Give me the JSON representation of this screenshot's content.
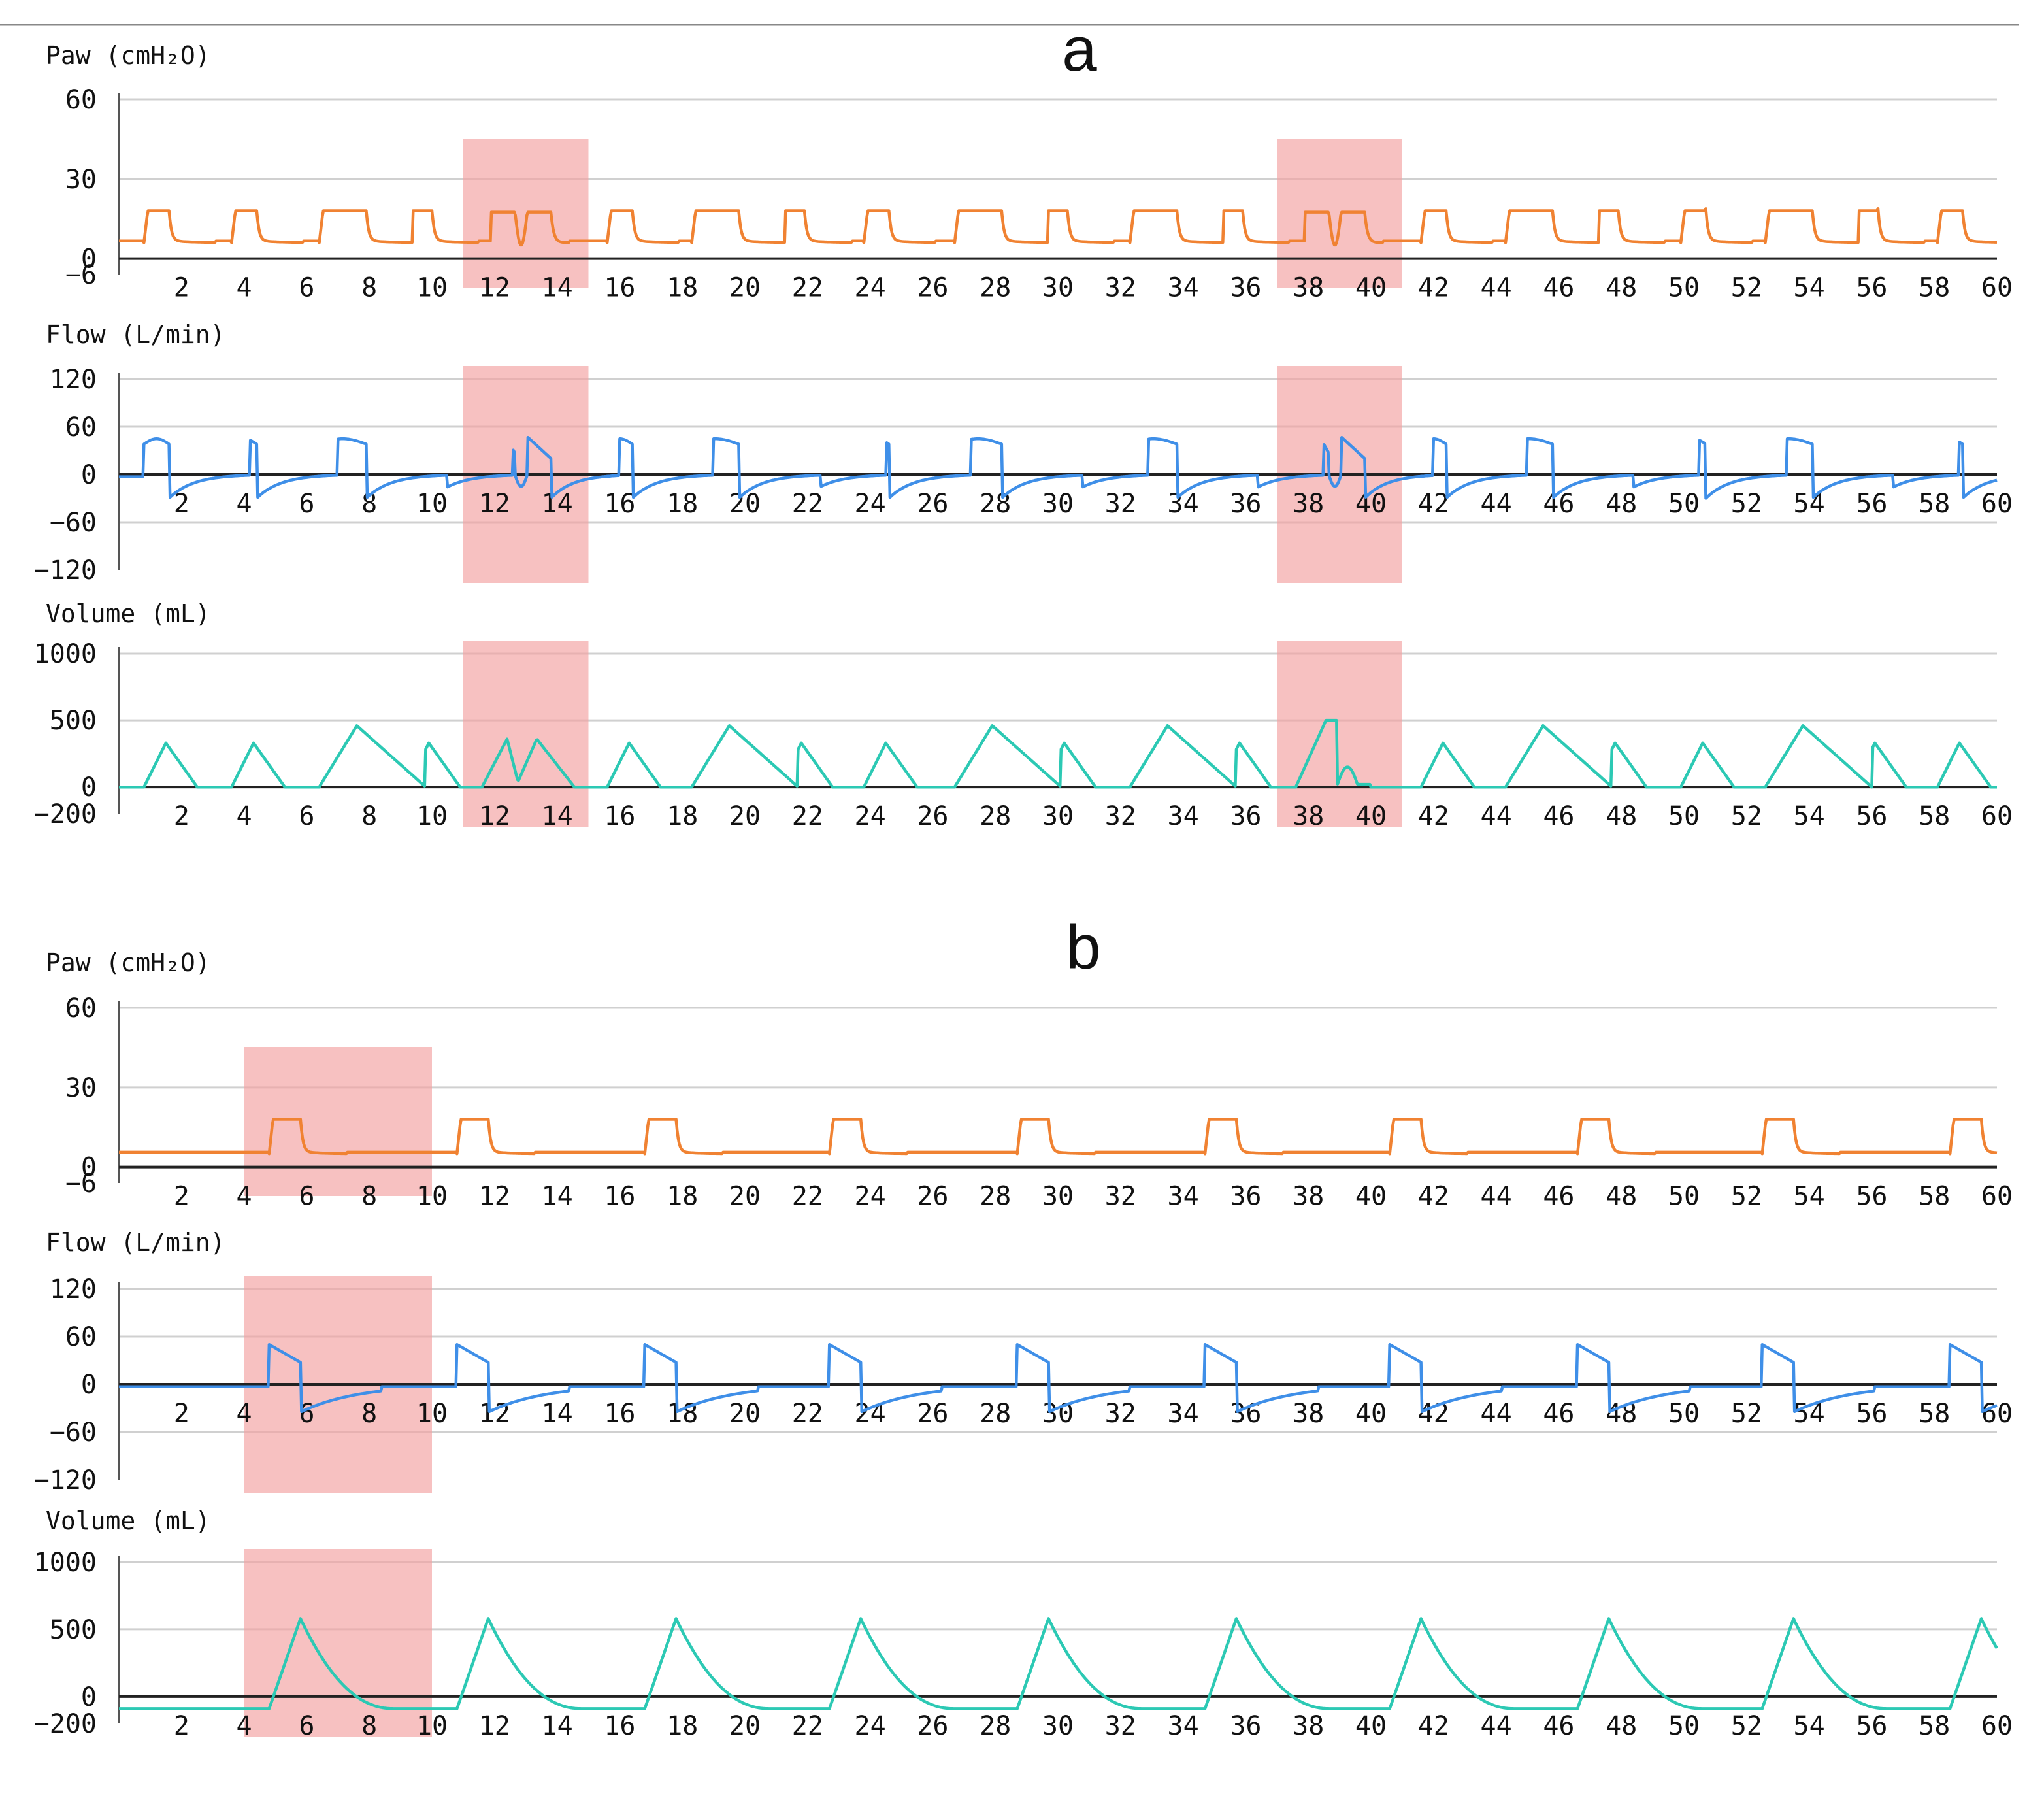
{
  "figure": {
    "top_rule": true,
    "panels": [
      {
        "letter": "a",
        "highlight_windows": [
          [
            11,
            15
          ],
          [
            37,
            41
          ]
        ],
        "breaths": [
          {
            "start": 0.8,
            "type": "normal"
          },
          {
            "start": 3.6,
            "type": "normal"
          },
          {
            "start": 6.4,
            "type": "long"
          },
          {
            "start": 9.2,
            "type": "normal"
          },
          {
            "start": 11.9,
            "type": "double"
          },
          {
            "start": 15.6,
            "type": "normal"
          },
          {
            "start": 18.3,
            "type": "long"
          },
          {
            "start": 21.1,
            "type": "normal"
          },
          {
            "start": 23.8,
            "type": "normal"
          },
          {
            "start": 26.7,
            "type": "long"
          },
          {
            "start": 29.5,
            "type": "normal"
          },
          {
            "start": 32.3,
            "type": "long"
          },
          {
            "start": 35.1,
            "type": "normal"
          },
          {
            "start": 37.9,
            "type": "double_stack"
          },
          {
            "start": 41.6,
            "type": "normal"
          },
          {
            "start": 44.3,
            "type": "long"
          },
          {
            "start": 47.1,
            "type": "normal"
          },
          {
            "start": 49.9,
            "type": "normal"
          },
          {
            "start": 52.6,
            "type": "long"
          },
          {
            "start": 55.4,
            "type": "normal"
          },
          {
            "start": 58.1,
            "type": "normal"
          }
        ]
      },
      {
        "letter": "b",
        "highlight_windows": [
          [
            4,
            10
          ]
        ],
        "breaths": [
          {
            "start": 4.8,
            "type": "slow"
          },
          {
            "start": 10.8,
            "type": "slow"
          },
          {
            "start": 16.8,
            "type": "slow"
          },
          {
            "start": 22.7,
            "type": "slow"
          },
          {
            "start": 28.7,
            "type": "slow"
          },
          {
            "start": 34.7,
            "type": "slow"
          },
          {
            "start": 40.6,
            "type": "slow"
          },
          {
            "start": 46.6,
            "type": "slow"
          },
          {
            "start": 52.5,
            "type": "slow"
          },
          {
            "start": 58.5,
            "type": "slow"
          }
        ]
      }
    ]
  },
  "chart_data": [
    {
      "type": "line",
      "panel": "a",
      "title": "Paw (cmH₂O)",
      "ylabel": "Paw (cmH₂O)",
      "xlabel": "",
      "xlim": [
        0,
        60
      ],
      "ylim": [
        -6,
        60
      ],
      "y_ticks": [
        60,
        30,
        0,
        -6
      ],
      "x_ticks": [
        2,
        4,
        6,
        8,
        10,
        12,
        14,
        16,
        18,
        20,
        22,
        24,
        26,
        28,
        30,
        32,
        34,
        36,
        38,
        40,
        42,
        44,
        46,
        48,
        50,
        52,
        54,
        56,
        58,
        60
      ],
      "grid": true,
      "baseline": 0,
      "color": "#F08232",
      "series": [
        {
          "name": "Paw",
          "peak": 18,
          "peep": 6
        }
      ]
    },
    {
      "type": "line",
      "panel": "a",
      "title": "Flow (L/min)",
      "ylabel": "Flow (L/min)",
      "xlabel": "",
      "xlim": [
        0,
        60
      ],
      "ylim": [
        -120,
        120
      ],
      "y_ticks": [
        120,
        60,
        0,
        -60,
        -120
      ],
      "x_ticks": [
        2,
        4,
        6,
        8,
        10,
        12,
        14,
        16,
        18,
        20,
        22,
        24,
        26,
        28,
        30,
        32,
        34,
        36,
        38,
        40,
        42,
        44,
        46,
        48,
        50,
        52,
        54,
        56,
        58,
        60
      ],
      "grid": true,
      "baseline": 0,
      "color": "#3F8FE8",
      "series": [
        {
          "name": "Flow",
          "insp_peak": 45,
          "exp_peak": -30
        }
      ]
    },
    {
      "type": "line",
      "panel": "a",
      "title": "Volume (mL)",
      "ylabel": "Volume (mL)",
      "xlabel": "",
      "xlim": [
        0,
        60
      ],
      "ylim": [
        -200,
        1000
      ],
      "y_ticks": [
        1000,
        500,
        0,
        -200
      ],
      "x_ticks": [
        2,
        4,
        6,
        8,
        10,
        12,
        14,
        16,
        18,
        20,
        22,
        24,
        26,
        28,
        30,
        32,
        34,
        36,
        38,
        40,
        42,
        44,
        46,
        48,
        50,
        52,
        54,
        56,
        58,
        60
      ],
      "grid": true,
      "baseline": 0,
      "color": "#2CC9B4",
      "series": [
        {
          "name": "Volume",
          "tidal_normal": 330,
          "tidal_long": 460
        }
      ]
    },
    {
      "type": "line",
      "panel": "b",
      "title": "Paw (cmH₂O)",
      "ylabel": "Paw (cmH₂O)",
      "xlabel": "",
      "xlim": [
        0,
        60
      ],
      "ylim": [
        -6,
        60
      ],
      "y_ticks": [
        60,
        30,
        0,
        -6
      ],
      "x_ticks": [
        2,
        4,
        6,
        8,
        10,
        12,
        14,
        16,
        18,
        20,
        22,
        24,
        26,
        28,
        30,
        32,
        34,
        36,
        38,
        40,
        42,
        44,
        46,
        48,
        50,
        52,
        54,
        56,
        58,
        60
      ],
      "grid": true,
      "baseline": 0,
      "color": "#F08232",
      "series": [
        {
          "name": "Paw",
          "peak": 18,
          "peep": 5
        }
      ]
    },
    {
      "type": "line",
      "panel": "b",
      "title": "Flow (L/min)",
      "ylabel": "Flow (L/min)",
      "xlabel": "",
      "xlim": [
        0,
        60
      ],
      "ylim": [
        -120,
        120
      ],
      "y_ticks": [
        120,
        60,
        0,
        -60,
        -120
      ],
      "x_ticks": [
        2,
        4,
        6,
        8,
        10,
        12,
        14,
        16,
        18,
        20,
        22,
        24,
        26,
        28,
        30,
        32,
        34,
        36,
        38,
        40,
        42,
        44,
        46,
        48,
        50,
        52,
        54,
        56,
        58,
        60
      ],
      "grid": true,
      "baseline": 0,
      "color": "#3F8FE8",
      "series": [
        {
          "name": "Flow",
          "insp_peak": 50,
          "exp_peak": -35
        }
      ]
    },
    {
      "type": "line",
      "panel": "b",
      "title": "Volume (mL)",
      "ylabel": "Volume (mL)",
      "xlabel": "",
      "xlim": [
        0,
        60
      ],
      "ylim": [
        -200,
        1000
      ],
      "y_ticks": [
        1000,
        500,
        0,
        -200
      ],
      "x_ticks": [
        2,
        4,
        6,
        8,
        10,
        12,
        14,
        16,
        18,
        20,
        22,
        24,
        26,
        28,
        30,
        32,
        34,
        36,
        38,
        40,
        42,
        44,
        46,
        48,
        50,
        52,
        54,
        56,
        58,
        60
      ],
      "grid": true,
      "baseline": 0,
      "color": "#2CC9B4",
      "series": [
        {
          "name": "Volume",
          "tidal": 580,
          "baseline_volume": -90
        }
      ]
    }
  ]
}
